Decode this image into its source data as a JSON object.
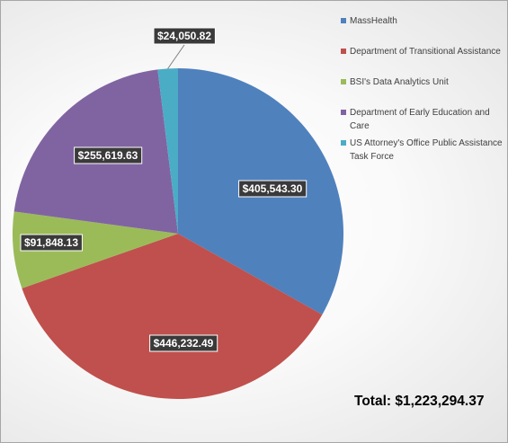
{
  "chart_data": {
    "type": "pie",
    "slices": [
      {
        "label": "MassHealth",
        "value": 405543.3,
        "display": "$405,543.30",
        "color": "#4f81bd"
      },
      {
        "label": "Department of Transitional Assistance",
        "value": 446232.49,
        "display": "$446,232.49",
        "color": "#c0504d"
      },
      {
        "label": "BSI's Data Analytics Unit",
        "value": 91848.13,
        "display": "$91,848.13",
        "color": "#9bbb59"
      },
      {
        "label": "Department of Early Education and Care",
        "value": 255619.63,
        "display": "$255,619.63",
        "color": "#8064a2"
      },
      {
        "label": "US Attorney's Office Public Assistance Task Force",
        "value": 24050.82,
        "display": "$24,050.82",
        "color": "#4bacc6"
      }
    ],
    "legend_position": "top-right"
  },
  "total_label": "Total: $1,223,294.37"
}
